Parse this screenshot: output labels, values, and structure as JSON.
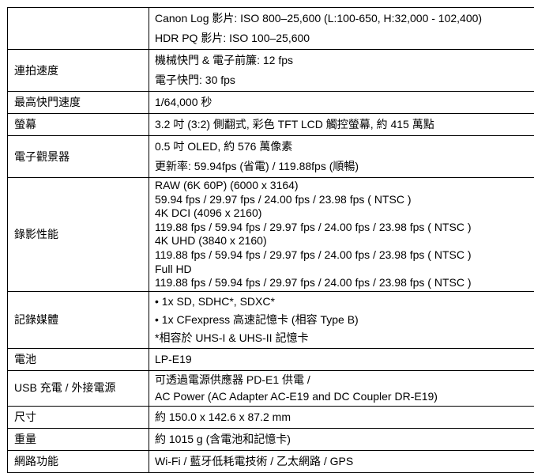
{
  "table": {
    "colors": {
      "border": "#000000",
      "text": "#000000",
      "background": "#ffffff"
    },
    "rows": [
      {
        "label": "",
        "lines": [
          "Canon Log 影片: ISO 800–25,600 (L:100-650, H:32,000 - 102,400)",
          "HDR PQ 影片: ISO 100–25,600"
        ]
      },
      {
        "label": "連拍速度",
        "lines": [
          "機械快門 & 電子前簾: 12 fps",
          "電子快門: 30 fps"
        ]
      },
      {
        "label": "最高快門速度",
        "lines": [
          "1/64,000 秒"
        ]
      },
      {
        "label": "螢幕",
        "lines": [
          "3.2 吋 (3:2) 側翻式, 彩色 TFT LCD 觸控螢幕, 約 415 萬點"
        ]
      },
      {
        "label": "電子觀景器",
        "lines": [
          "0.5 吋 OLED, 約 576 萬像素",
          "更新率: 59.94fps (省電) / 119.88fps (順暢)"
        ]
      },
      {
        "label": "錄影性能",
        "lines": [
          "RAW (6K 60P) (6000 x 3164)",
          "59.94 fps / 29.97 fps / 24.00 fps / 23.98 fps ( NTSC )",
          "4K DCI (4096 x 2160)",
          "119.88 fps / 59.94 fps / 29.97 fps / 24.00 fps / 23.98 fps ( NTSC )",
          "4K UHD (3840 x 2160)",
          "119.88 fps / 59.94 fps / 29.97 fps / 24.00 fps / 23.98 fps ( NTSC )",
          "Full HD",
          "119.88 fps / 59.94 fps / 29.97 fps / 24.00 fps / 23.98 fps ( NTSC )"
        ]
      },
      {
        "label": "記錄媒體",
        "lines": [
          "• 1x SD, SDHC*, SDXC*",
          "• 1x CFexpress 高速記憶卡 (相容 Type B)",
          "*相容於 UHS-I & UHS-II 記憶卡"
        ]
      },
      {
        "label": "電池",
        "lines": [
          "LP-E19"
        ]
      },
      {
        "label": "USB 充電 / 外接電源",
        "lines": [
          "可透過電源供應器 PD-E1 供電 /",
          "AC Power (AC Adapter AC-E19 and DC Coupler DR-E19)"
        ]
      },
      {
        "label": "尺寸",
        "lines": [
          "約 150.0 x 142.6 x 87.2 mm"
        ]
      },
      {
        "label": "重量",
        "lines": [
          "約 1015 g (含電池和記憶卡)"
        ]
      },
      {
        "label": "網路功能",
        "lines": [
          "Wi-Fi / 藍牙低耗電技術 / 乙太網路 / GPS"
        ]
      }
    ]
  }
}
